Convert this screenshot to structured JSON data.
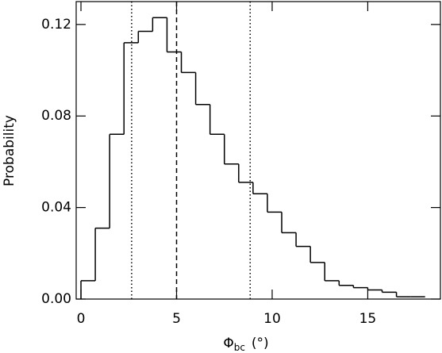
{
  "chart_data": {
    "type": "histogram",
    "y_label": "Probability",
    "x_label": {
      "symbol": "Φ",
      "sub": "bc",
      "unit": "(°)"
    },
    "bins": [
      0,
      0.75,
      1.5,
      2.25,
      3,
      3.75,
      4.5,
      5.25,
      6,
      6.75,
      7.5,
      8.25,
      9,
      9.75,
      10.5,
      11.25,
      12,
      12.75,
      13.5,
      14.25,
      15,
      15.75,
      16.5,
      17.25,
      18
    ],
    "values": [
      0.008,
      0.031,
      0.072,
      0.112,
      0.117,
      0.123,
      0.108,
      0.099,
      0.085,
      0.072,
      0.059,
      0.051,
      0.046,
      0.038,
      0.029,
      0.023,
      0.016,
      0.008,
      0.006,
      0.005,
      0.004,
      0.003,
      0.001,
      0.001
    ],
    "color": "#000000",
    "xlim": [
      -0.25,
      18.8
    ],
    "ylim": [
      0,
      0.13
    ],
    "xticks": [
      0,
      5,
      10,
      15
    ],
    "yticks": [
      {
        "value": 0,
        "label": "0.00"
      },
      0.04,
      0.08,
      0.12
    ],
    "vlines": [
      {
        "x": 2.65,
        "style": "dotted"
      },
      {
        "x": 5.0,
        "style": "dashed"
      },
      {
        "x": 8.85,
        "style": "dotted"
      }
    ]
  }
}
